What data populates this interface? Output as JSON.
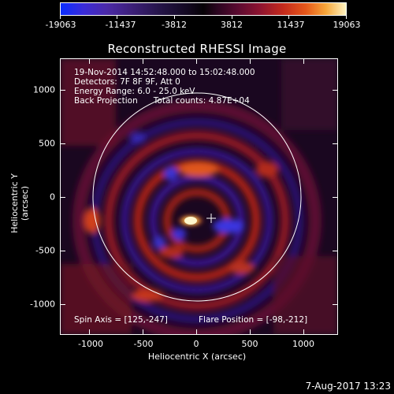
{
  "colorbar": {
    "labels": [
      "-19063",
      "-11437",
      "-3812",
      "3812",
      "11437",
      "19063"
    ]
  },
  "title": "Reconstructed RHESSI Image",
  "info": {
    "line1": "19-Nov-2014 14:52:48.000 to 15:02:48.000",
    "line2": "Detectors: 7F 8F 9F, Att 0",
    "line3": "Energy Range: 6.0 - 25.0 keV",
    "line4": "Back Projection      Total counts: 4.87E+04",
    "spin_axis": "Spin Axis = [125,-247]",
    "flare_position": "Flare Position = [-98,-212]"
  },
  "axes": {
    "x_title": "Heliocentric X (arcsec)",
    "y_title": "Heliocentric Y (arcsec)",
    "x_ticks": [
      "-1000",
      "-500",
      "0",
      "500",
      "1000"
    ],
    "y_ticks": [
      "1000",
      "500",
      "0",
      "-500",
      "-1000"
    ]
  },
  "footer_date": "7-Aug-2017 13:23",
  "colors": {
    "background": "#000000",
    "foreground": "#ffffff",
    "min": "#0a2dff",
    "max": "#fff3c2"
  }
}
